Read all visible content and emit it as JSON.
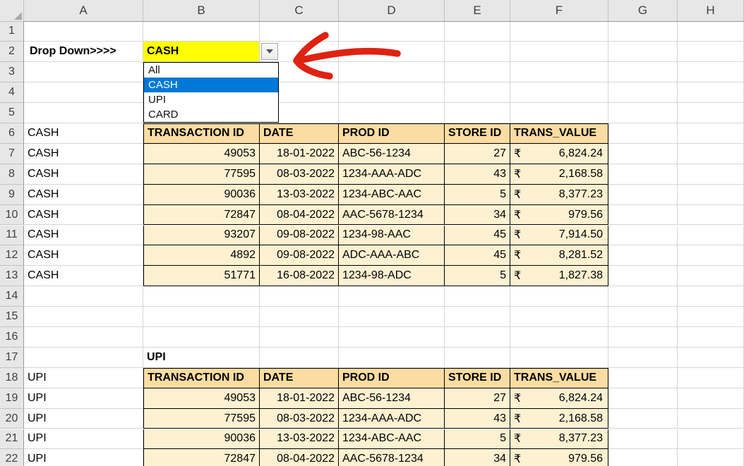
{
  "sheet": {
    "column_headers": [
      "A",
      "B",
      "C",
      "D",
      "E",
      "F",
      "G",
      "H"
    ],
    "row_headers": [
      "1",
      "2",
      "3",
      "4",
      "5",
      "6",
      "7",
      "8",
      "9",
      "10",
      "11",
      "12",
      "13",
      "14",
      "15",
      "16",
      "17",
      "18",
      "19",
      "20",
      "21",
      "22"
    ]
  },
  "dropdown": {
    "label": "Drop Down>>>>",
    "value": "CASH",
    "options": [
      {
        "label": "All",
        "selected": false
      },
      {
        "label": "CASH",
        "selected": true
      },
      {
        "label": "UPI",
        "selected": false
      },
      {
        "label": "CARD",
        "selected": false
      }
    ]
  },
  "columns": [
    "TRANSACTION ID",
    "DATE",
    "PROD ID",
    "STORE ID",
    "TRANS_VALUE"
  ],
  "currency_symbol": "₹",
  "column_a": [
    {
      "text": "CASH",
      "rows": [
        6,
        7,
        8,
        9,
        10,
        11,
        12,
        13
      ]
    },
    {
      "text": "UPI",
      "rows": [
        18,
        19,
        20,
        21,
        22
      ]
    }
  ],
  "sections": [
    {
      "title": "",
      "header_row": 6,
      "rows": [
        {
          "transaction_id": "49053",
          "date": "18-01-2022",
          "prod_id": "ABC-56-1234",
          "store_id": "27",
          "trans_value": "6,824.24"
        },
        {
          "transaction_id": "77595",
          "date": "08-03-2022",
          "prod_id": "1234-AAA-ADC",
          "store_id": "43",
          "trans_value": "2,168.58"
        },
        {
          "transaction_id": "90036",
          "date": "13-03-2022",
          "prod_id": "1234-ABC-AAC",
          "store_id": "5",
          "trans_value": "8,377.23"
        },
        {
          "transaction_id": "72847",
          "date": "08-04-2022",
          "prod_id": "AAC-5678-1234",
          "store_id": "34",
          "trans_value": "979.56"
        },
        {
          "transaction_id": "93207",
          "date": "09-08-2022",
          "prod_id": "1234-98-AAC",
          "store_id": "45",
          "trans_value": "7,914.50"
        },
        {
          "transaction_id": "4892",
          "date": "09-08-2022",
          "prod_id": "ADC-AAA-ABC",
          "store_id": "45",
          "trans_value": "8,281.52"
        },
        {
          "transaction_id": "51771",
          "date": "16-08-2022",
          "prod_id": "1234-98-ADC",
          "store_id": "5",
          "trans_value": "1,827.38"
        }
      ]
    },
    {
      "title": "UPI",
      "title_row": 17,
      "header_row": 18,
      "rows": [
        {
          "transaction_id": "49053",
          "date": "18-01-2022",
          "prod_id": "ABC-56-1234",
          "store_id": "27",
          "trans_value": "6,824.24"
        },
        {
          "transaction_id": "77595",
          "date": "08-03-2022",
          "prod_id": "1234-AAA-ADC",
          "store_id": "43",
          "trans_value": "2,168.58"
        },
        {
          "transaction_id": "90036",
          "date": "13-03-2022",
          "prod_id": "1234-ABC-AAC",
          "store_id": "5",
          "trans_value": "8,377.23"
        },
        {
          "transaction_id": "72847",
          "date": "08-04-2022",
          "prod_id": "AAC-5678-1234",
          "store_id": "34",
          "trans_value": "979.56"
        }
      ]
    }
  ],
  "colors": {
    "header_fill": "#FBDCA2",
    "row_fill": "#FDF1D2",
    "dropdown_yellow": "#FFFF00",
    "selection_blue": "#0078D7",
    "grid_line": "#D6D6D6",
    "heading_bg": "#E7E7E7",
    "heading_border": "#C2C2C2",
    "heading_strong": "#9A9A9A",
    "heading_text": "#3F3F3F",
    "table_border": "#000000",
    "button_border": "#A6A6A6",
    "corner_triangle": "#A9A9A9",
    "arrow_red": "#DF2212"
  }
}
